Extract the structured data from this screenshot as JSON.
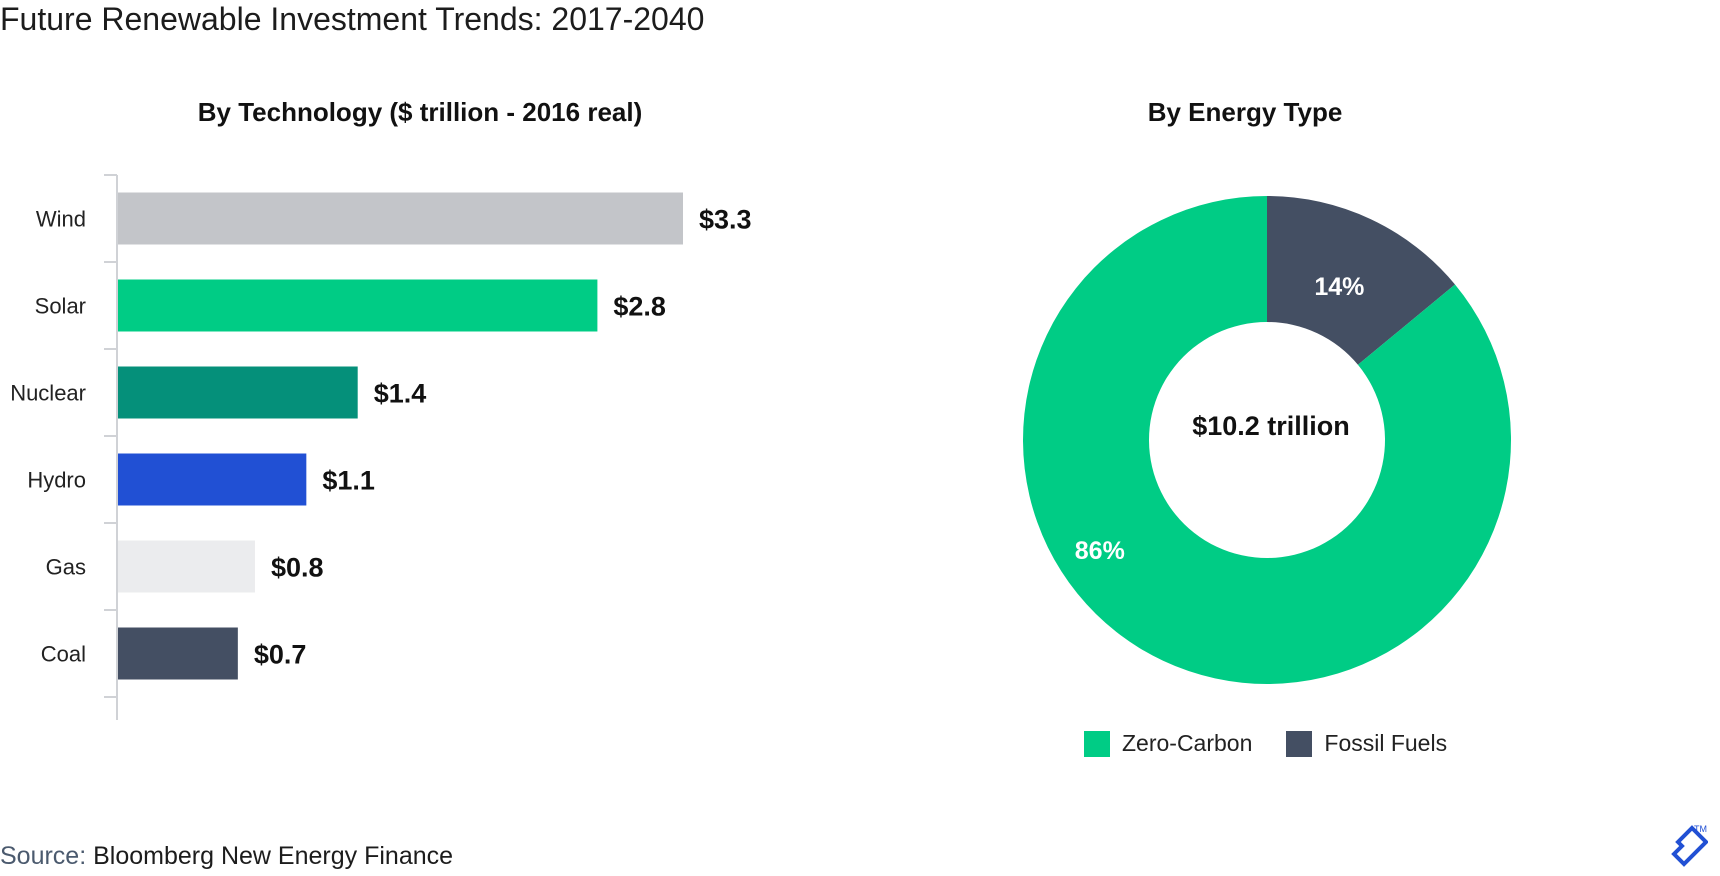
{
  "title": "Future Renewable Investment Trends: 2017-2040",
  "source": {
    "label": "Source:",
    "value": "Bloomberg New Energy Finance"
  },
  "colors": {
    "zero_carbon": "#00cc85",
    "fossil_fuels": "#444f63",
    "wind": "#c3c5c9",
    "solar": "#00cc85",
    "nuclear": "#05907a",
    "hydro": "#2150d4",
    "gas": "#ebecee",
    "coal": "#444f63",
    "logo": "#2150d4"
  },
  "chart_data": [
    {
      "type": "bar",
      "orientation": "horizontal",
      "title": "By Technology ($ trillion - 2016 real)",
      "categories": [
        "Wind",
        "Solar",
        "Nuclear",
        "Hydro",
        "Gas",
        "Coal"
      ],
      "values": [
        3.3,
        2.8,
        1.4,
        1.1,
        0.8,
        0.7
      ],
      "value_labels": [
        "$3.3",
        "$2.8",
        "$1.4",
        "$1.1",
        "$0.8",
        "$0.7"
      ],
      "xlim": [
        0,
        3.3
      ]
    },
    {
      "type": "pie",
      "style": "donut",
      "title": "By Energy Type",
      "center_label": "$10.2 trillion",
      "slices": [
        {
          "name": "Fossil Fuels",
          "value": 14,
          "label": "14%"
        },
        {
          "name": "Zero-Carbon",
          "value": 86,
          "label": "86%"
        }
      ],
      "legend": [
        "Zero-Carbon",
        "Fossil Fuels"
      ],
      "legend_position": "bottom"
    }
  ]
}
